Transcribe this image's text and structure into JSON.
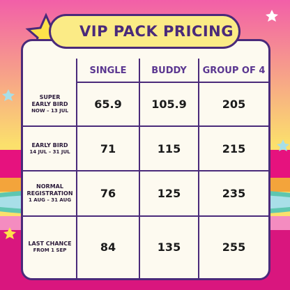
{
  "header": {
    "title": "VIP PACK PRICING"
  },
  "table": {
    "columns": [
      "SINGLE",
      "BUDDY",
      "GROUP OF 4"
    ],
    "rows": [
      {
        "label": [
          "SUPER",
          "EARLY BIRD"
        ],
        "date": "NOW – 13 JUL",
        "values": [
          65.9,
          105.9,
          205
        ]
      },
      {
        "label": [
          "EARLY BIRD"
        ],
        "date": "14 JUL – 31 JUL",
        "values": [
          71,
          115,
          215
        ]
      },
      {
        "label": [
          "NORMAL",
          "REGISTRATION"
        ],
        "date": "1 AUG – 31 AUG",
        "values": [
          76,
          125,
          235
        ]
      },
      {
        "label": [
          "LAST CHANCE"
        ],
        "date": "FROM 1 SEP",
        "values": [
          84,
          135,
          255
        ]
      }
    ]
  }
}
